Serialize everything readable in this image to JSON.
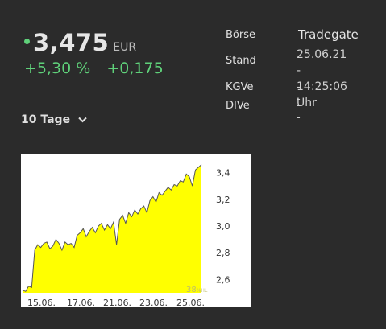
{
  "quote": {
    "price": "3,475",
    "currency": "EUR",
    "change_pct": "+5,30 %",
    "change_abs": "+0,175"
  },
  "info": {
    "boerse_label": "Börse",
    "boerse_value": "Tradegate",
    "stand_label": "Stand",
    "stand_value_line1": "25.06.21 -",
    "stand_value_line2": "14:25:06 Uhr",
    "kgve_label": "KGVe",
    "kgve_value": "--",
    "dive_label": "DIVe",
    "dive_value": "--"
  },
  "range": {
    "label": "10 Tage"
  },
  "colors": {
    "up": "#5fd17a",
    "area": "#ffff00",
    "line": "#555555"
  },
  "chart_data": {
    "type": "area",
    "x_tick_labels": [
      "15.06.",
      "17.06.",
      "21.06.",
      "23.06.",
      "25.06."
    ],
    "y_tick_labels": [
      "3,4",
      "3,2",
      "3,0",
      "2,8",
      "2,6"
    ],
    "y_ticks": [
      3.4,
      3.2,
      3.0,
      2.8,
      2.6
    ],
    "ylim": [
      2.5,
      3.5
    ],
    "watermark": "38",
    "watermark_suffix": "%HL",
    "values": [
      2.52,
      2.51,
      2.55,
      2.54,
      2.82,
      2.86,
      2.84,
      2.87,
      2.88,
      2.83,
      2.85,
      2.9,
      2.87,
      2.82,
      2.88,
      2.86,
      2.87,
      2.84,
      2.93,
      2.95,
      2.98,
      2.92,
      2.96,
      2.99,
      2.95,
      3.0,
      3.02,
      2.97,
      3.01,
      2.98,
      3.03,
      2.86,
      3.05,
      3.08,
      3.02,
      3.1,
      3.07,
      3.12,
      3.09,
      3.13,
      3.15,
      3.1,
      3.19,
      3.22,
      3.18,
      3.25,
      3.23,
      3.26,
      3.29,
      3.27,
      3.31,
      3.3,
      3.34,
      3.33,
      3.39,
      3.37,
      3.3,
      3.42,
      3.44,
      3.46
    ]
  }
}
